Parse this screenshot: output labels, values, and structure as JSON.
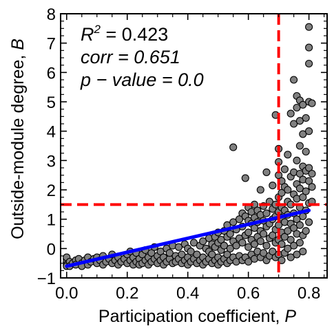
{
  "chart_data": {
    "type": "scatter",
    "title": "",
    "xlabel": "Participation coefficient, ",
    "xlabel_var": "P",
    "ylabel": "Outside-module degree, ",
    "ylabel_var": "B",
    "xlim": [
      -0.02,
      0.86
    ],
    "ylim": [
      -1,
      8
    ],
    "xticks": [
      0.0,
      0.2,
      0.4,
      0.6,
      0.8
    ],
    "xtick_labels": [
      "0.0",
      "0.2",
      "0.4",
      "0.6",
      "0.8"
    ],
    "yticks": [
      -1,
      0,
      1,
      2,
      3,
      4,
      5,
      6,
      7,
      8
    ],
    "ytick_labels": [
      "−1",
      "0",
      "1",
      "2",
      "3",
      "4",
      "5",
      "6",
      "7",
      "8"
    ],
    "grid": false,
    "stats": {
      "r2_label": "R",
      "r2_sup": "2",
      "r2_value": " = 0.423",
      "corr_text": "corr = 0.651",
      "pvalue_text": "p − value = 0.0"
    },
    "regression_line": {
      "x": [
        0.0,
        0.8
      ],
      "y": [
        -0.6,
        1.3
      ],
      "color": "#0000ff"
    },
    "threshold_lines": {
      "x": 0.7,
      "y": 1.5,
      "color": "#ff0000"
    },
    "point_color": "#808080",
    "point_edge": "#000000",
    "series": [
      {
        "points": [
          [
            0.0,
            -0.35
          ],
          [
            0.0,
            -0.45
          ],
          [
            0.0,
            -0.55
          ],
          [
            0.0,
            -0.6
          ],
          [
            0.0,
            -0.3
          ],
          [
            0.01,
            -0.45
          ],
          [
            0.01,
            -0.6
          ],
          [
            0.02,
            -0.5
          ],
          [
            0.03,
            -0.4
          ],
          [
            0.03,
            -0.55
          ],
          [
            0.04,
            -0.35
          ],
          [
            0.05,
            -0.5
          ],
          [
            0.05,
            -0.6
          ],
          [
            0.06,
            -0.4
          ],
          [
            0.07,
            -0.3
          ],
          [
            0.07,
            -0.55
          ],
          [
            0.08,
            -0.45
          ],
          [
            0.09,
            -0.35
          ],
          [
            0.1,
            -0.5
          ],
          [
            0.1,
            -0.3
          ],
          [
            0.11,
            -0.4
          ],
          [
            0.12,
            -0.55
          ],
          [
            0.12,
            -0.25
          ],
          [
            0.13,
            -0.45
          ],
          [
            0.14,
            -0.35
          ],
          [
            0.15,
            -0.5
          ],
          [
            0.15,
            -0.2
          ],
          [
            0.16,
            -0.4
          ],
          [
            0.17,
            -0.3
          ],
          [
            0.17,
            -0.55
          ],
          [
            0.18,
            -0.45
          ],
          [
            0.19,
            -0.35
          ],
          [
            0.2,
            -0.5
          ],
          [
            0.2,
            -0.2
          ],
          [
            0.21,
            -0.4
          ],
          [
            0.21,
            -0.1
          ],
          [
            0.22,
            -0.55
          ],
          [
            0.22,
            -0.3
          ],
          [
            0.23,
            -0.45
          ],
          [
            0.23,
            -0.15
          ],
          [
            0.24,
            -0.35
          ],
          [
            0.24,
            -0.55
          ],
          [
            0.25,
            -0.5
          ],
          [
            0.25,
            -0.2
          ],
          [
            0.26,
            -0.4
          ],
          [
            0.26,
            -0.05
          ],
          [
            0.27,
            -0.3
          ],
          [
            0.27,
            -0.55
          ],
          [
            0.28,
            -0.45
          ],
          [
            0.28,
            -0.15
          ],
          [
            0.29,
            -0.35
          ],
          [
            0.29,
            0.05
          ],
          [
            0.3,
            -0.5
          ],
          [
            0.3,
            -0.25
          ],
          [
            0.31,
            -0.4
          ],
          [
            0.31,
            -0.1
          ],
          [
            0.32,
            -0.55
          ],
          [
            0.32,
            -0.3
          ],
          [
            0.33,
            -0.45
          ],
          [
            0.33,
            0.0
          ],
          [
            0.34,
            -0.35
          ],
          [
            0.34,
            -0.15
          ],
          [
            0.35,
            -0.5
          ],
          [
            0.35,
            0.1
          ],
          [
            0.36,
            -0.25
          ],
          [
            0.36,
            -0.45
          ],
          [
            0.37,
            -0.35
          ],
          [
            0.37,
            0.05
          ],
          [
            0.38,
            -0.5
          ],
          [
            0.38,
            -0.2
          ],
          [
            0.39,
            -0.4
          ],
          [
            0.39,
            0.15
          ],
          [
            0.4,
            -0.55
          ],
          [
            0.4,
            -0.3
          ],
          [
            0.4,
            0.0
          ],
          [
            0.41,
            -0.45
          ],
          [
            0.41,
            -0.1
          ],
          [
            0.42,
            -0.35
          ],
          [
            0.42,
            0.2
          ],
          [
            0.43,
            -0.5
          ],
          [
            0.43,
            -0.2
          ],
          [
            0.44,
            -0.4
          ],
          [
            0.44,
            0.1
          ],
          [
            0.45,
            -0.55
          ],
          [
            0.45,
            -0.3
          ],
          [
            0.45,
            0.25
          ],
          [
            0.46,
            -0.45
          ],
          [
            0.46,
            0.0
          ],
          [
            0.47,
            -0.35
          ],
          [
            0.47,
            -0.1
          ],
          [
            0.47,
            0.35
          ],
          [
            0.48,
            -0.5
          ],
          [
            0.48,
            -0.2
          ],
          [
            0.48,
            0.15
          ],
          [
            0.49,
            -0.4
          ],
          [
            0.49,
            0.05
          ],
          [
            0.49,
            0.4
          ],
          [
            0.5,
            -0.55
          ],
          [
            0.5,
            -0.3
          ],
          [
            0.5,
            0.2
          ],
          [
            0.5,
            0.55
          ],
          [
            0.51,
            -0.45
          ],
          [
            0.51,
            -0.05
          ],
          [
            0.51,
            0.3
          ],
          [
            0.52,
            -0.35
          ],
          [
            0.52,
            0.1
          ],
          [
            0.52,
            0.6
          ],
          [
            0.53,
            -0.5
          ],
          [
            0.53,
            -0.2
          ],
          [
            0.53,
            0.4
          ],
          [
            0.53,
            0.8
          ],
          [
            0.54,
            -0.4
          ],
          [
            0.54,
            0.0
          ],
          [
            0.54,
            0.5
          ],
          [
            0.55,
            -0.3
          ],
          [
            0.55,
            0.25
          ],
          [
            0.55,
            0.9
          ],
          [
            0.55,
            3.45
          ],
          [
            0.56,
            -0.45
          ],
          [
            0.56,
            0.1
          ],
          [
            0.56,
            0.65
          ],
          [
            0.57,
            -0.25
          ],
          [
            0.57,
            0.35
          ],
          [
            0.57,
            1.0
          ],
          [
            0.58,
            -0.4
          ],
          [
            0.58,
            0.2
          ],
          [
            0.58,
            0.75
          ],
          [
            0.58,
            1.2
          ],
          [
            0.59,
            -0.3
          ],
          [
            0.59,
            0.45
          ],
          [
            0.59,
            1.1
          ],
          [
            0.59,
            2.4
          ],
          [
            0.6,
            -0.45
          ],
          [
            0.6,
            0.05
          ],
          [
            0.6,
            0.55
          ],
          [
            0.6,
            0.95
          ],
          [
            0.6,
            1.4
          ],
          [
            0.61,
            -0.2
          ],
          [
            0.61,
            0.3
          ],
          [
            0.61,
            0.85
          ],
          [
            0.61,
            1.25
          ],
          [
            0.62,
            -0.35
          ],
          [
            0.62,
            0.15
          ],
          [
            0.62,
            0.7
          ],
          [
            0.62,
            1.05
          ],
          [
            0.62,
            1.5
          ],
          [
            0.63,
            -0.1
          ],
          [
            0.63,
            0.4
          ],
          [
            0.63,
            0.9
          ],
          [
            0.63,
            1.3
          ],
          [
            0.64,
            -0.3
          ],
          [
            0.64,
            0.25
          ],
          [
            0.64,
            0.6
          ],
          [
            0.64,
            1.15
          ],
          [
            0.64,
            2.0
          ],
          [
            0.65,
            -0.15
          ],
          [
            0.65,
            0.5
          ],
          [
            0.65,
            0.95
          ],
          [
            0.65,
            1.45
          ],
          [
            0.66,
            -0.4
          ],
          [
            0.66,
            0.1
          ],
          [
            0.66,
            0.75
          ],
          [
            0.66,
            1.2
          ],
          [
            0.66,
            2.6
          ],
          [
            0.67,
            -0.25
          ],
          [
            0.67,
            0.35
          ],
          [
            0.67,
            0.85
          ],
          [
            0.67,
            1.6
          ],
          [
            0.68,
            -0.1
          ],
          [
            0.68,
            0.45
          ],
          [
            0.68,
            1.0
          ],
          [
            0.68,
            1.35
          ],
          [
            0.68,
            2.15
          ],
          [
            0.69,
            -0.3
          ],
          [
            0.69,
            0.2
          ],
          [
            0.69,
            0.65
          ],
          [
            0.69,
            1.1
          ],
          [
            0.69,
            1.5
          ],
          [
            0.69,
            4.55
          ],
          [
            0.7,
            -0.2
          ],
          [
            0.7,
            0.3
          ],
          [
            0.7,
            0.8
          ],
          [
            0.7,
            1.25
          ],
          [
            0.7,
            1.75
          ],
          [
            0.7,
            2.5
          ],
          [
            0.7,
            2.95
          ],
          [
            0.7,
            3.4
          ],
          [
            0.71,
            -0.4
          ],
          [
            0.71,
            0.15
          ],
          [
            0.71,
            0.55
          ],
          [
            0.71,
            1.05
          ],
          [
            0.71,
            1.4
          ],
          [
            0.71,
            1.9
          ],
          [
            0.71,
            2.3
          ],
          [
            0.72,
            -0.15
          ],
          [
            0.72,
            0.4
          ],
          [
            0.72,
            0.9
          ],
          [
            0.72,
            1.3
          ],
          [
            0.72,
            2.1
          ],
          [
            0.72,
            2.7
          ],
          [
            0.73,
            0.0
          ],
          [
            0.73,
            0.6
          ],
          [
            0.73,
            1.15
          ],
          [
            0.73,
            1.6
          ],
          [
            0.73,
            2.0
          ],
          [
            0.73,
            3.2
          ],
          [
            0.74,
            -0.3
          ],
          [
            0.74,
            0.3
          ],
          [
            0.74,
            0.85
          ],
          [
            0.74,
            1.5
          ],
          [
            0.74,
            2.45
          ],
          [
            0.74,
            4.6
          ],
          [
            0.75,
            0.1
          ],
          [
            0.75,
            0.7
          ],
          [
            0.75,
            1.2
          ],
          [
            0.75,
            1.85
          ],
          [
            0.75,
            2.6
          ],
          [
            0.75,
            4.25
          ],
          [
            0.75,
            5.75
          ],
          [
            0.76,
            -0.2
          ],
          [
            0.76,
            0.5
          ],
          [
            0.76,
            1.0
          ],
          [
            0.76,
            1.7
          ],
          [
            0.76,
            2.2
          ],
          [
            0.76,
            3.0
          ],
          [
            0.76,
            4.8
          ],
          [
            0.76,
            5.2
          ],
          [
            0.77,
            0.2
          ],
          [
            0.77,
            0.8
          ],
          [
            0.77,
            1.4
          ],
          [
            0.77,
            2.05
          ],
          [
            0.77,
            2.55
          ],
          [
            0.77,
            3.5
          ],
          [
            0.77,
            4.35
          ],
          [
            0.77,
            5.05
          ],
          [
            0.78,
            -0.1
          ],
          [
            0.78,
            0.45
          ],
          [
            0.78,
            1.1
          ],
          [
            0.78,
            1.75
          ],
          [
            0.78,
            2.35
          ],
          [
            0.78,
            2.8
          ],
          [
            0.78,
            3.9
          ],
          [
            0.78,
            4.9
          ],
          [
            0.79,
            0.6
          ],
          [
            0.79,
            1.3
          ],
          [
            0.79,
            1.95
          ],
          [
            0.79,
            2.65
          ],
          [
            0.79,
            3.3
          ],
          [
            0.79,
            4.45
          ],
          [
            0.8,
            0.9
          ],
          [
            0.8,
            1.55
          ],
          [
            0.8,
            2.3
          ],
          [
            0.8,
            2.75
          ],
          [
            0.8,
            4.0
          ],
          [
            0.8,
            5.0
          ],
          [
            0.8,
            6.3
          ],
          [
            0.8,
            6.85
          ],
          [
            0.8,
            7.55
          ],
          [
            0.81,
            1.6
          ],
          [
            0.81,
            2.1
          ],
          [
            0.81,
            2.55
          ],
          [
            0.81,
            4.95
          ]
        ]
      }
    ]
  }
}
